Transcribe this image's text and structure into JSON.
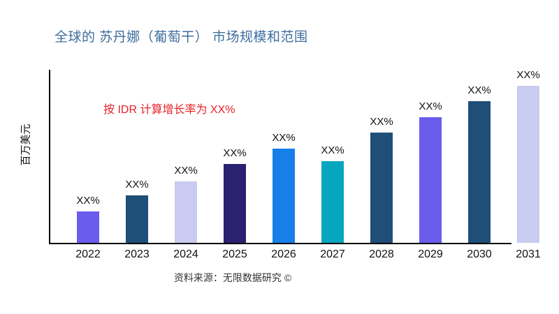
{
  "title": {
    "text": "全球的 苏丹娜（葡萄干） 市场规模和范围",
    "color": "#3E6E9E"
  },
  "annotation": {
    "text": "按 IDR 计算增长率为 XX%",
    "color": "#E8222A"
  },
  "y_axis_label": "百万美元",
  "source": "资料来源：无限数据研究 ©",
  "chart_data": {
    "type": "bar",
    "title": "全球的 苏丹娜（葡萄干） 市场规模和范围",
    "xlabel": "",
    "ylabel": "百万美元",
    "categories": [
      "2022",
      "2023",
      "2024",
      "2025",
      "2026",
      "2027",
      "2028",
      "2029",
      "2030",
      "2031"
    ],
    "values": [
      20,
      30,
      39,
      50,
      60,
      52,
      70,
      80,
      90,
      100
    ],
    "value_labels": [
      "XX%",
      "XX%",
      "XX%",
      "XX%",
      "XX%",
      "XX%",
      "XX%",
      "XX%",
      "XX%",
      "XX%"
    ],
    "bar_colors": [
      "#6A5CEC",
      "#1F4E79",
      "#C9CBF0",
      "#2A2171",
      "#177FE8",
      "#06A6BF",
      "#1F4E79",
      "#6A5CEC",
      "#1F4E79",
      "#C9CBF0"
    ],
    "ylim": [
      0,
      110
    ],
    "grid": false,
    "legend": "none",
    "annotation": "按 IDR 计算增长率为 XX%"
  }
}
